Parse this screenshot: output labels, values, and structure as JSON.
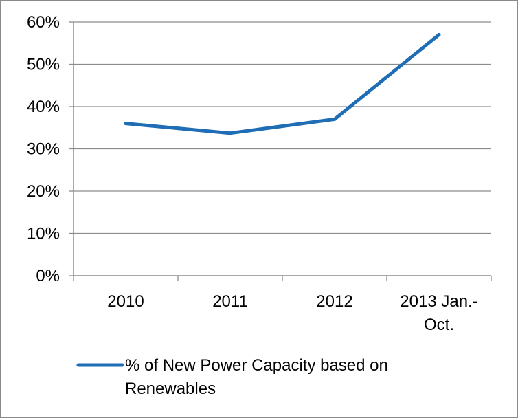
{
  "chart_data": {
    "type": "line",
    "title": "",
    "xlabel": "",
    "ylabel": "",
    "categories": [
      "2010",
      "2011",
      "2012",
      "2013 Jan.-Oct."
    ],
    "category_label_lines": [
      [
        "2010"
      ],
      [
        "2011"
      ],
      [
        "2012"
      ],
      [
        "2013 Jan.-",
        "Oct."
      ]
    ],
    "series": [
      {
        "name": "% of New Power Capacity based on Renewables",
        "name_lines": [
          "% of New Power Capacity based on",
          "Renewables"
        ],
        "values": [
          36,
          33.7,
          37,
          57
        ],
        "color": "#1f6db5"
      }
    ],
    "ylim": [
      0,
      60
    ],
    "yticks": [
      0,
      10,
      20,
      30,
      40,
      50,
      60
    ],
    "ytick_labels": [
      "0%",
      "10%",
      "20%",
      "30%",
      "40%",
      "50%",
      "60%"
    ],
    "grid": true,
    "legend_position": "bottom"
  }
}
